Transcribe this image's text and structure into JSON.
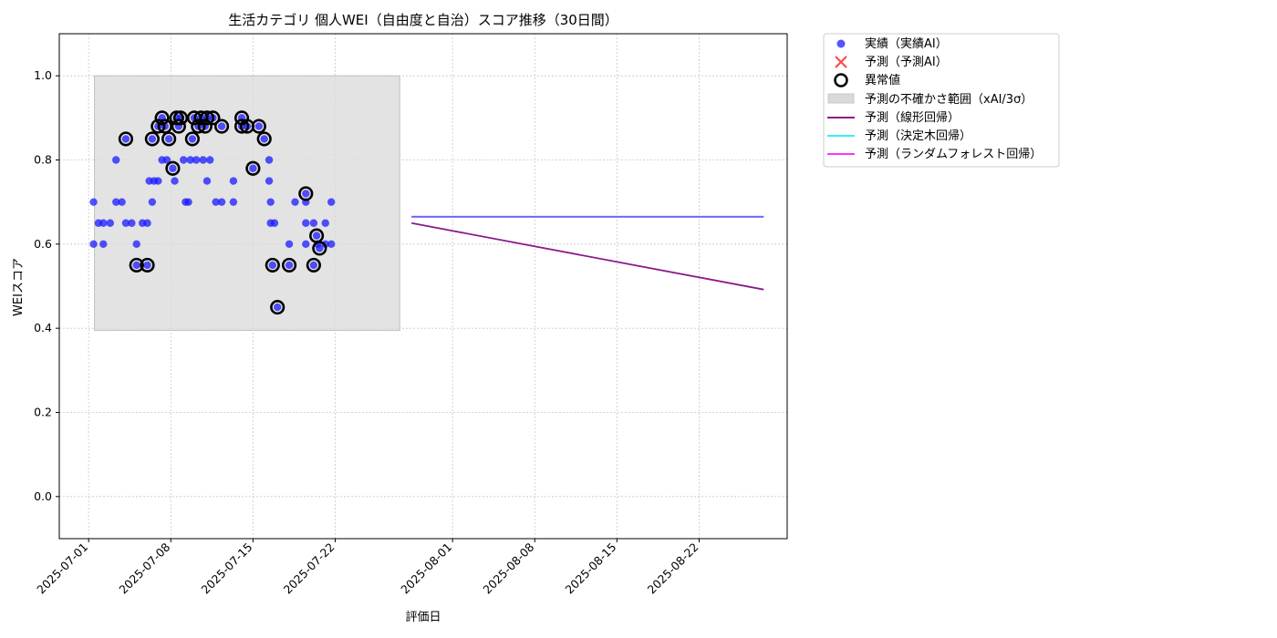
{
  "chart_data": {
    "type": "scatter",
    "title": "生活カテゴリ 個人WEI（自由度と自治）スコア推移（30日間）",
    "xlabel": "評価日",
    "ylabel": "WEIスコア",
    "xlim": [
      "2025-06-28T12:00",
      "2025-08-29T12:00"
    ],
    "ylim": [
      -0.1,
      1.1
    ],
    "yticks": [
      "0.0",
      "0.2",
      "0.4",
      "0.6",
      "0.8",
      "1.0"
    ],
    "xticks": [
      "2025-07-01",
      "2025-07-08",
      "2025-07-15",
      "2025-07-22",
      "2025-08-01",
      "2025-08-08",
      "2025-08-15",
      "2025-08-22"
    ],
    "grid": true,
    "legend_position": "outside-top-right",
    "colors": {
      "actual": "#1a1aff",
      "forecast_x": "#ff4444",
      "anomaly_edge": "#000000",
      "band": "#d9d9d9",
      "linear": "#8b1a8b",
      "tree": "#33f0ff",
      "forest": "#ff33ff",
      "overlap": "#7a5cff"
    },
    "uncertainty_band": {
      "x_start": "2025-07-01T12:00",
      "x_end": "2025-07-27T12:00",
      "y_low": 0.395,
      "y_high": 1.0
    },
    "series": [
      {
        "name": "実績（実績AI）",
        "type": "scatter",
        "points": [
          [
            "2025-07-01T10:00",
            0.7
          ],
          [
            "2025-07-01T10:00",
            0.6
          ],
          [
            "2025-07-01T20:00",
            0.65
          ],
          [
            "2025-07-02T06:00",
            0.6
          ],
          [
            "2025-07-02T06:00",
            0.65
          ],
          [
            "2025-07-02T20:00",
            0.65
          ],
          [
            "2025-07-03T08:00",
            0.8
          ],
          [
            "2025-07-03T08:00",
            0.7
          ],
          [
            "2025-07-03T20:00",
            0.7
          ],
          [
            "2025-07-04T04:00",
            0.85
          ],
          [
            "2025-07-04T04:00",
            0.65
          ],
          [
            "2025-07-04T16:00",
            0.65
          ],
          [
            "2025-07-05T02:00",
            0.55
          ],
          [
            "2025-07-05T02:00",
            0.6
          ],
          [
            "2025-07-05T14:00",
            0.65
          ],
          [
            "2025-07-06T00:00",
            0.55
          ],
          [
            "2025-07-06T00:00",
            0.65
          ],
          [
            "2025-07-06T04:00",
            0.75
          ],
          [
            "2025-07-06T10:00",
            0.85
          ],
          [
            "2025-07-06T10:00",
            0.7
          ],
          [
            "2025-07-06T14:00",
            0.75
          ],
          [
            "2025-07-06T22:00",
            0.88
          ],
          [
            "2025-07-06T22:00",
            0.75
          ],
          [
            "2025-07-07T06:00",
            0.9
          ],
          [
            "2025-07-07T06:00",
            0.8
          ],
          [
            "2025-07-07T12:00",
            0.88
          ],
          [
            "2025-07-07T16:00",
            0.8
          ],
          [
            "2025-07-07T20:00",
            0.85
          ],
          [
            "2025-07-08T04:00",
            0.78
          ],
          [
            "2025-07-08T08:00",
            0.75
          ],
          [
            "2025-07-08T12:00",
            0.9
          ],
          [
            "2025-07-08T16:00",
            0.88
          ],
          [
            "2025-07-08T20:00",
            0.9
          ],
          [
            "2025-07-09T02:00",
            0.8
          ],
          [
            "2025-07-09T06:00",
            0.7
          ],
          [
            "2025-07-09T12:00",
            0.7
          ],
          [
            "2025-07-09T16:00",
            0.8
          ],
          [
            "2025-07-09T20:00",
            0.85
          ],
          [
            "2025-07-10T00:00",
            0.9
          ],
          [
            "2025-07-10T04:00",
            0.8
          ],
          [
            "2025-07-10T08:00",
            0.88
          ],
          [
            "2025-07-10T14:00",
            0.9
          ],
          [
            "2025-07-10T18:00",
            0.8
          ],
          [
            "2025-07-10T22:00",
            0.88
          ],
          [
            "2025-07-11T02:00",
            0.9
          ],
          [
            "2025-07-11T02:00",
            0.75
          ],
          [
            "2025-07-11T08:00",
            0.8
          ],
          [
            "2025-07-11T14:00",
            0.9
          ],
          [
            "2025-07-11T20:00",
            0.7
          ],
          [
            "2025-07-12T08:00",
            0.88
          ],
          [
            "2025-07-12T08:00",
            0.7
          ],
          [
            "2025-07-13T08:00",
            0.75
          ],
          [
            "2025-07-13T08:00",
            0.7
          ],
          [
            "2025-07-14T01:00",
            0.9
          ],
          [
            "2025-07-14T01:00",
            0.88
          ],
          [
            "2025-07-14T12:00",
            0.88
          ],
          [
            "2025-07-15T00:00",
            0.78
          ],
          [
            "2025-07-15T12:00",
            0.88
          ],
          [
            "2025-07-15T23:00",
            0.85
          ],
          [
            "2025-07-16T09:00",
            0.8
          ],
          [
            "2025-07-16T09:00",
            0.75
          ],
          [
            "2025-07-16T12:00",
            0.7
          ],
          [
            "2025-07-16T12:00",
            0.65
          ],
          [
            "2025-07-16T16:00",
            0.55
          ],
          [
            "2025-07-16T20:00",
            0.65
          ],
          [
            "2025-07-17T02:00",
            0.45
          ],
          [
            "2025-07-18T02:00",
            0.55
          ],
          [
            "2025-07-18T02:00",
            0.6
          ],
          [
            "2025-07-18T14:00",
            0.7
          ],
          [
            "2025-07-19T12:00",
            0.72
          ],
          [
            "2025-07-19T12:00",
            0.7
          ],
          [
            "2025-07-19T12:00",
            0.65
          ],
          [
            "2025-07-19T12:00",
            0.6
          ],
          [
            "2025-07-20T04:00",
            0.65
          ],
          [
            "2025-07-20T04:00",
            0.55
          ],
          [
            "2025-07-20T10:00",
            0.62
          ],
          [
            "2025-07-20T12:00",
            0.6
          ],
          [
            "2025-07-20T16:00",
            0.59
          ],
          [
            "2025-07-21T04:00",
            0.6
          ],
          [
            "2025-07-21T04:00",
            0.65
          ],
          [
            "2025-07-21T16:00",
            0.7
          ],
          [
            "2025-07-21T16:00",
            0.6
          ]
        ]
      },
      {
        "name": "予測（予測AI）",
        "type": "scatter-x",
        "points": []
      },
      {
        "name": "異常値",
        "type": "ring",
        "points": [
          [
            "2025-07-04T04:00",
            0.85
          ],
          [
            "2025-07-05T02:00",
            0.55
          ],
          [
            "2025-07-06T00:00",
            0.55
          ],
          [
            "2025-07-06T10:00",
            0.85
          ],
          [
            "2025-07-06T22:00",
            0.88
          ],
          [
            "2025-07-07T06:00",
            0.9
          ],
          [
            "2025-07-07T12:00",
            0.88
          ],
          [
            "2025-07-07T20:00",
            0.85
          ],
          [
            "2025-07-08T04:00",
            0.78
          ],
          [
            "2025-07-08T12:00",
            0.9
          ],
          [
            "2025-07-08T16:00",
            0.88
          ],
          [
            "2025-07-08T20:00",
            0.9
          ],
          [
            "2025-07-09T20:00",
            0.85
          ],
          [
            "2025-07-10T00:00",
            0.9
          ],
          [
            "2025-07-10T08:00",
            0.88
          ],
          [
            "2025-07-10T14:00",
            0.9
          ],
          [
            "2025-07-10T22:00",
            0.88
          ],
          [
            "2025-07-11T02:00",
            0.9
          ],
          [
            "2025-07-11T14:00",
            0.9
          ],
          [
            "2025-07-12T08:00",
            0.88
          ],
          [
            "2025-07-14T01:00",
            0.9
          ],
          [
            "2025-07-14T01:00",
            0.88
          ],
          [
            "2025-07-14T12:00",
            0.88
          ],
          [
            "2025-07-15T00:00",
            0.78
          ],
          [
            "2025-07-15T12:00",
            0.88
          ],
          [
            "2025-07-15T23:00",
            0.85
          ],
          [
            "2025-07-16T16:00",
            0.55
          ],
          [
            "2025-07-17T02:00",
            0.45
          ],
          [
            "2025-07-18T02:00",
            0.55
          ],
          [
            "2025-07-19T12:00",
            0.72
          ],
          [
            "2025-07-20T04:00",
            0.55
          ],
          [
            "2025-07-20T10:00",
            0.62
          ],
          [
            "2025-07-20T16:00",
            0.59
          ]
        ]
      },
      {
        "name": "予測の不確かさ範囲（xAI/3σ）",
        "type": "band"
      },
      {
        "name": "予測（線形回帰）",
        "type": "line",
        "points": [
          [
            "2025-07-28T12:00",
            0.65
          ],
          [
            "2025-08-27T12:00",
            0.492
          ]
        ]
      },
      {
        "name": "予測（決定木回帰）",
        "type": "line",
        "points": [
          [
            "2025-07-28T12:00",
            0.665
          ],
          [
            "2025-08-27T12:00",
            0.665
          ]
        ]
      },
      {
        "name": "予測（ランダムフォレスト回帰）",
        "type": "line",
        "points": [
          [
            "2025-07-28T12:00",
            0.665
          ],
          [
            "2025-08-27T12:00",
            0.665
          ]
        ]
      }
    ]
  }
}
